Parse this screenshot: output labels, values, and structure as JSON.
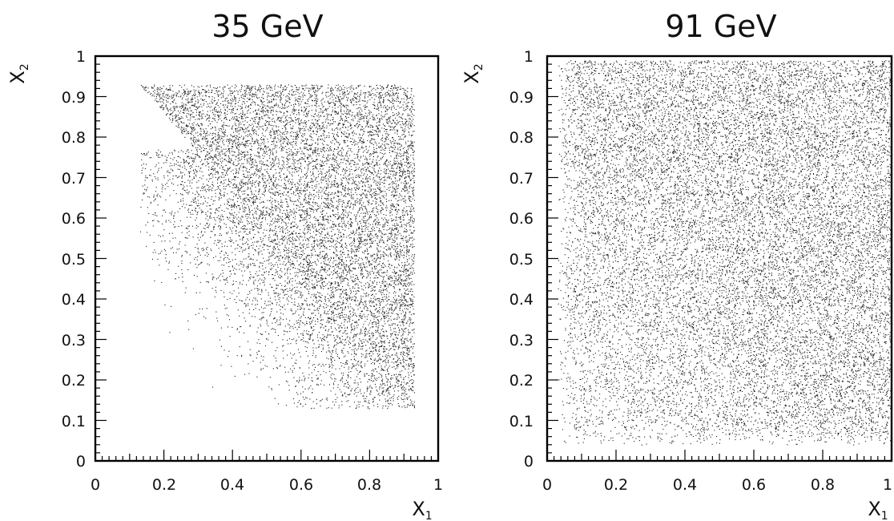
{
  "chart_data": [
    {
      "type": "scatter",
      "title": "35 GeV",
      "xlabel": "X",
      "xlabel_sub": "1",
      "ylabel": "X",
      "ylabel_sub": "2",
      "xlim": [
        0,
        1
      ],
      "ylim": [
        0,
        1
      ],
      "xticks": [
        "0",
        "0.2",
        "0.4",
        "0.6",
        "0.8",
        "1"
      ],
      "yticks": [
        "0",
        "0.1",
        "0.2",
        "0.3",
        "0.4",
        "0.5",
        "0.6",
        "0.7",
        "0.8",
        "0.9",
        "1"
      ],
      "grid": false,
      "legend": "none",
      "point_color": "#1a1a1a",
      "region": {
        "x_max": 0.93,
        "y_max": 0.93,
        "sharp_edge": [
          [
            0.13,
            0.93
          ],
          [
            0.93,
            0.14
          ]
        ],
        "diffuse_edge": [
          [
            0.28,
            0.78
          ],
          [
            0.24,
            0.62
          ],
          [
            0.23,
            0.45
          ],
          [
            0.24,
            0.35
          ],
          [
            0.26,
            0.27
          ]
        ],
        "density": "dense above the line x1 + x2 = 1.06, sparse scatter below it"
      }
    },
    {
      "type": "scatter",
      "title": "91 GeV",
      "xlabel": "X",
      "xlabel_sub": "1",
      "ylabel": "X",
      "ylabel_sub": "2",
      "xlim": [
        0,
        1
      ],
      "ylim": [
        0,
        1
      ],
      "xticks": [
        "0",
        "0.2",
        "0.4",
        "0.6",
        "0.8",
        "1"
      ],
      "yticks": [
        "0",
        "0.1",
        "0.2",
        "0.3",
        "0.4",
        "0.5",
        "0.6",
        "0.7",
        "0.8",
        "0.9",
        "1"
      ],
      "grid": false,
      "legend": "none",
      "point_color": "#1a1a1a",
      "region": {
        "x_min": 0.03,
        "y_min": 0.04,
        "x_max": 1.0,
        "y_max": 0.99,
        "density": "filled square, thinning toward the lower-left corner, darkest near the top-right corner"
      }
    }
  ]
}
